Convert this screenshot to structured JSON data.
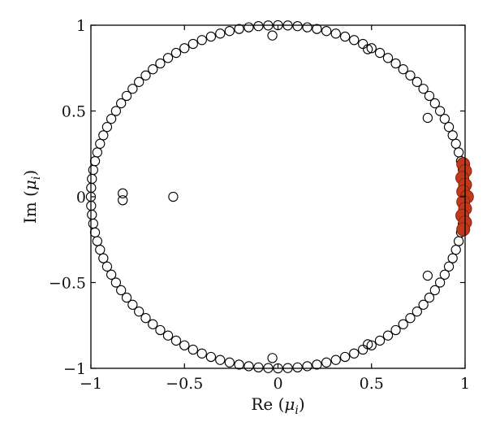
{
  "chart_data": {
    "type": "scatter",
    "xlabel": {
      "prefix": "Re (",
      "symbol": "μ",
      "sub": "i",
      "suffix": ")"
    },
    "ylabel": {
      "prefix": "Im (",
      "symbol": "μ",
      "sub": "i",
      "suffix": ")"
    },
    "xlim": [
      -1,
      1
    ],
    "ylim": [
      -1,
      1
    ],
    "xticks": [
      -1,
      -0.5,
      0,
      0.5,
      1
    ],
    "yticks": [
      -1,
      -0.5,
      0,
      0.5,
      1
    ],
    "xtick_labels": [
      "−1",
      "−0.5",
      "0",
      "0.5",
      "1"
    ],
    "ytick_labels": [
      "−1",
      "−0.5",
      "0",
      "0.5",
      "1"
    ],
    "grid": false,
    "colors": {
      "open": "#000000",
      "highlight": "#c0391b",
      "highlight_edge": "#8a2410"
    },
    "series": [
      {
        "marker": "open-circle",
        "points_on_unit_circle_angles_deg": [
          3,
          6,
          9,
          12,
          15,
          18,
          21,
          24,
          27,
          30,
          33,
          36,
          39,
          42,
          45,
          48,
          51,
          54,
          57,
          60,
          63,
          66,
          69,
          72,
          75,
          78,
          81,
          84,
          87,
          90,
          93,
          96,
          99,
          102,
          105,
          108,
          111,
          114,
          117,
          120,
          123,
          126,
          129,
          132,
          135,
          138,
          141,
          144,
          147,
          150,
          153,
          156,
          159,
          162,
          165,
          168,
          171,
          174,
          177,
          180,
          183,
          186,
          189,
          192,
          195,
          198,
          201,
          204,
          207,
          210,
          213,
          216,
          219,
          222,
          225,
          228,
          231,
          234,
          237,
          240,
          243,
          246,
          249,
          252,
          255,
          258,
          261,
          264,
          267,
          270,
          273,
          276,
          279,
          282,
          285,
          288,
          291,
          294,
          297,
          300,
          303,
          306,
          309,
          312,
          315,
          318,
          321,
          324,
          327,
          330,
          333,
          336,
          339,
          342,
          345,
          348,
          351,
          354,
          357
        ],
        "points": [
          [
            -0.83,
            0.02
          ],
          [
            -0.83,
            -0.02
          ],
          [
            -0.56,
            0.0
          ],
          [
            -0.03,
            0.94
          ],
          [
            -0.03,
            -0.94
          ],
          [
            0.8,
            0.46
          ],
          [
            0.8,
            -0.46
          ],
          [
            0.48,
            0.86
          ],
          [
            0.48,
            -0.86
          ]
        ]
      },
      {
        "marker": "filled-circle",
        "points": [
          [
            0.99,
            0.19
          ],
          [
            1.0,
            0.15
          ],
          [
            0.985,
            0.11
          ],
          [
            1.0,
            0.07
          ],
          [
            0.99,
            0.03
          ],
          [
            1.01,
            0.0
          ],
          [
            0.99,
            -0.03
          ],
          [
            1.0,
            -0.07
          ],
          [
            0.985,
            -0.11
          ],
          [
            1.0,
            -0.15
          ],
          [
            0.99,
            -0.19
          ]
        ]
      }
    ]
  }
}
